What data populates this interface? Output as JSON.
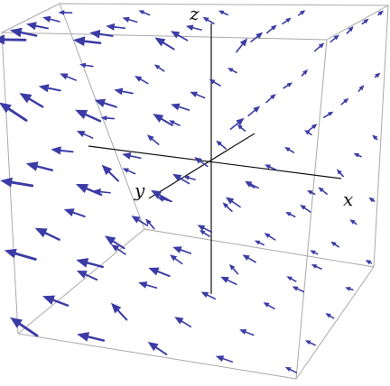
{
  "figure": {
    "kind": "3D vector field plot",
    "axis_labels": {
      "x": "x",
      "y": "y",
      "z": "z"
    },
    "colors": {
      "background": "#ffffff",
      "box_edge": "#a9a9a9",
      "axis_line": "#111111",
      "arrow": "#3b3ba6",
      "label": "#111111"
    }
  }
}
